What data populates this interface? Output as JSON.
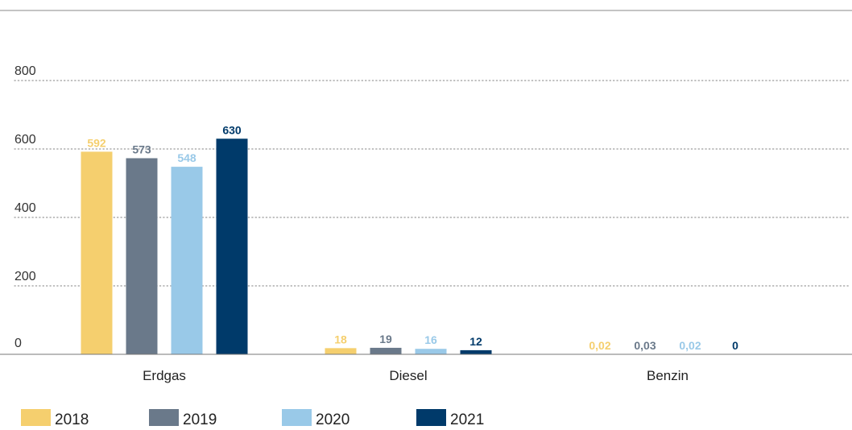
{
  "chart_data": {
    "type": "bar",
    "title": "",
    "xlabel": "",
    "ylabel": "",
    "ylim": [
      0,
      800
    ],
    "yticks": [
      {
        "value": 0,
        "label": "0"
      },
      {
        "value": 200,
        "label": "200"
      },
      {
        "value": 400,
        "label": "400"
      },
      {
        "value": 600,
        "label": "600"
      },
      {
        "value": 800,
        "label": "800"
      }
    ],
    "grid": true,
    "legend_position": "bottom-left",
    "categories": [
      "Erdgas",
      "Diesel",
      "Benzin"
    ],
    "series": [
      {
        "name": "2018",
        "color": "#F5CF6E",
        "values": [
          592,
          18,
          0.02
        ],
        "labels": [
          "592",
          "18",
          "0,02"
        ]
      },
      {
        "name": "2019",
        "color": "#6A798A",
        "values": [
          573,
          19,
          0.03
        ],
        "labels": [
          "573",
          "19",
          "0,03"
        ]
      },
      {
        "name": "2020",
        "color": "#99C9E8",
        "values": [
          548,
          16,
          0.02
        ],
        "labels": [
          "548",
          "16",
          "0,02"
        ]
      },
      {
        "name": "2021",
        "color": "#003A6A",
        "values": [
          630,
          12,
          0
        ],
        "labels": [
          "630",
          "12",
          "0"
        ]
      }
    ]
  }
}
